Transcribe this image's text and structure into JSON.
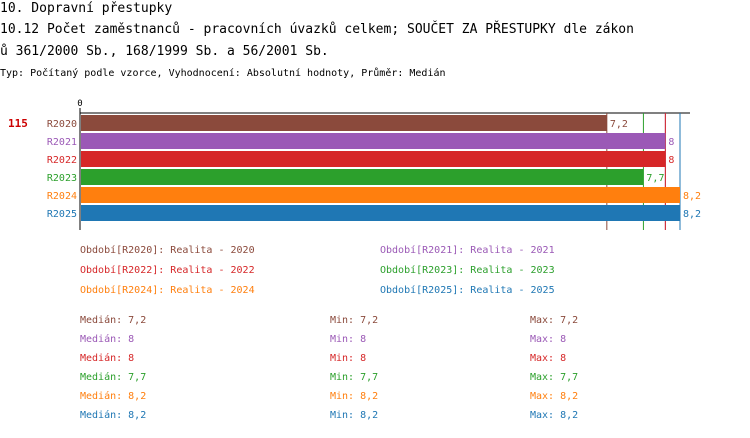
{
  "header": {
    "line1": "10. Dopravní přestupky",
    "line2": "10.12 Počet zaměstnanců - pracovních úvazků celkem; SOUČET ZA PŘESTUPKY dle zákon",
    "line3": "ů 361/2000 Sb., 168/1999 Sb. a 56/2001 Sb.",
    "subtitle": "Typ: Počítaný podle vzorce, Vyhodnocení: Absolutní hodnoty, Průměr: Medián"
  },
  "chart_data": {
    "type": "bar",
    "orientation": "horizontal",
    "group_label": "115",
    "axis_zero_label": "0",
    "xlim": [
      0,
      8.2
    ],
    "categories": [
      "R2020",
      "R2021",
      "R2022",
      "R2023",
      "R2024",
      "R2025"
    ],
    "values": [
      7.2,
      8,
      8,
      7.7,
      8.2,
      8.2
    ],
    "value_labels": [
      "7,2",
      "8",
      "8",
      "7,7",
      "8,2",
      "8,2"
    ],
    "colors": [
      "#8b4a3c",
      "#9b59b6",
      "#d62728",
      "#2ca02c",
      "#ff7f0e",
      "#1f77b4"
    ],
    "median_lines": [
      7.2,
      8,
      8,
      7.7,
      8.2,
      8.2
    ],
    "legend": [
      "Období[R2020]: Realita - 2020",
      "Období[R2021]: Realita - 2021",
      "Období[R2022]: Realita - 2022",
      "Období[R2023]: Realita - 2023",
      "Období[R2024]: Realita - 2024",
      "Období[R2025]: Realita - 2025"
    ],
    "stats": [
      {
        "median": "Medián: 7,2",
        "min": "Min: 7,2",
        "max": "Max: 7,2"
      },
      {
        "median": "Medián: 8",
        "min": "Min: 8",
        "max": "Max: 8"
      },
      {
        "median": "Medián: 8",
        "min": "Min: 8",
        "max": "Max: 8"
      },
      {
        "median": "Medián: 7,7",
        "min": "Min: 7,7",
        "max": "Max: 7,7"
      },
      {
        "median": "Medián: 8,2",
        "min": "Min: 8,2",
        "max": "Max: 8,2"
      },
      {
        "median": "Medián: 8,2",
        "min": "Min: 8,2",
        "max": "Max: 8,2"
      }
    ]
  }
}
